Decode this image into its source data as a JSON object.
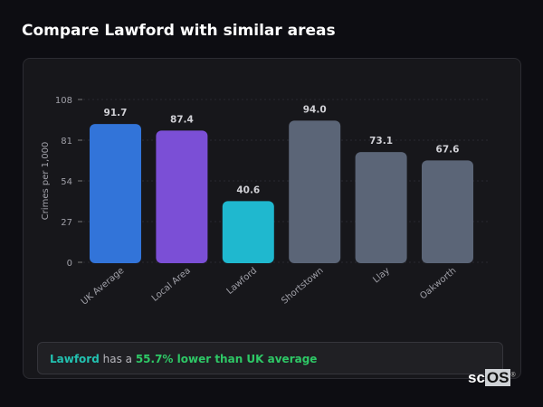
{
  "header": {
    "title": "Compare Lawford with similar areas"
  },
  "chart_data": {
    "type": "bar",
    "title": "",
    "xlabel": "",
    "ylabel": "Crimes per 1,000",
    "ylim": [
      0,
      108
    ],
    "yticks": [
      0,
      27,
      54,
      81,
      108
    ],
    "grid": true,
    "categories": [
      "UK Average",
      "Local Area",
      "Lawford",
      "Shortstown",
      "Llay",
      "Oakworth"
    ],
    "values": [
      91.7,
      87.4,
      40.6,
      94.0,
      73.1,
      67.6
    ],
    "value_labels": [
      "91.7",
      "87.4",
      "40.6",
      "94.0",
      "73.1",
      "67.6"
    ],
    "colors": [
      "#3274d9",
      "#7b4fd6",
      "#1fb8cf",
      "#5b6577",
      "#5b6577",
      "#5b6577"
    ]
  },
  "summary": {
    "subject": "Lawford",
    "middle": " has a ",
    "result": "55.7% lower than UK average"
  },
  "logo": {
    "text_a": "sc",
    "text_b": "OS"
  }
}
